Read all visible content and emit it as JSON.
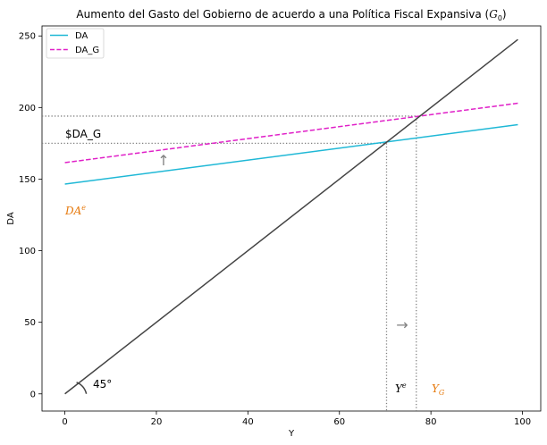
{
  "chart_data": {
    "type": "line",
    "title": "Aumento del Gasto del Gobierno de acuerdo a una Política Fiscal Expansiva (",
    "title_math": "G",
    "title_math_sub": "0",
    "title_end": ")",
    "xlabel": "Y",
    "ylabel": "DA",
    "xlim": [
      -5,
      104
    ],
    "ylim": [
      -12,
      257
    ],
    "x_ticks": [
      0,
      20,
      40,
      60,
      80,
      100
    ],
    "y_ticks": [
      0,
      50,
      100,
      150,
      200,
      250
    ],
    "grid": false,
    "legend_position": "top-left",
    "series": [
      {
        "name": "DA",
        "x": [
          0,
          99
        ],
        "values": [
          146.5,
          188
        ],
        "color": "#1fb8d6",
        "dash": "solid"
      },
      {
        "name": "DA_G",
        "x": [
          0,
          99
        ],
        "values": [
          161.5,
          203
        ],
        "color": "#e020c8",
        "dash": "dashed"
      },
      {
        "name": "",
        "x": [
          0,
          99
        ],
        "values": [
          0,
          247.5
        ],
        "color": "#444444",
        "dash": "solid"
      }
    ],
    "ref_lines": {
      "h_DA": 175,
      "h_DA_G": 194,
      "v_Ye": 70.3,
      "v_YG": 76.8
    },
    "annotations": {
      "da_g_label": "$DA_G",
      "da_e_base": "DA",
      "da_e_sup": "e",
      "angle_label": "45°",
      "up_arrow": "↑",
      "right_arrow": "→",
      "ye_base": "Y",
      "ye_sup": "e",
      "yg_base": "Y",
      "yg_sub": "G"
    },
    "colors": {
      "annotation_orange": "#e6780a",
      "arrow_gray": "#808080",
      "ref_line": "#808080"
    }
  }
}
